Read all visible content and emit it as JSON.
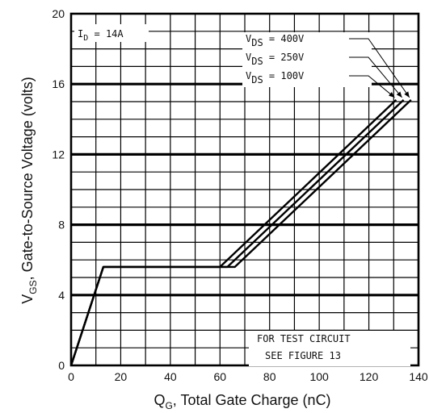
{
  "chart_data": {
    "type": "line",
    "xlabel": {
      "main": "Q",
      "sub": "G",
      "rest": ", Total Gate Charge (nC)"
    },
    "ylabel": {
      "main": "V",
      "sub": "GS",
      "rest": ", Gate-to-Source Voltage (volts)"
    },
    "xlim": [
      0,
      140
    ],
    "ylim": [
      0,
      20
    ],
    "x_ticks": [
      "0",
      "20",
      "40",
      "60",
      "80",
      "100",
      "120",
      "140"
    ],
    "y_ticks": [
      "0",
      "4",
      "8",
      "12",
      "16",
      "20"
    ],
    "grid": true,
    "annotation_id": {
      "main": "I",
      "sub": "D",
      "rest": " = 14A"
    },
    "series": [
      {
        "name": {
          "main": "V",
          "sub": "DS",
          "rest": " = 400V"
        },
        "points": [
          [
            0,
            0
          ],
          [
            13,
            5.6
          ],
          [
            66,
            5.6
          ],
          [
            137,
            15.1
          ]
        ]
      },
      {
        "name": {
          "main": "V",
          "sub": "DS",
          "rest": " = 250V"
        },
        "points": [
          [
            0,
            0
          ],
          [
            13,
            5.6
          ],
          [
            63,
            5.6
          ],
          [
            134,
            15.1
          ]
        ]
      },
      {
        "name": {
          "main": "V",
          "sub": "DS",
          "rest": " = 100V"
        },
        "points": [
          [
            0,
            0
          ],
          [
            13,
            5.6
          ],
          [
            60,
            5.6
          ],
          [
            131,
            15.1
          ]
        ]
      }
    ],
    "note": [
      "FOR TEST CIRCUIT",
      "SEE FIGURE 13"
    ]
  }
}
